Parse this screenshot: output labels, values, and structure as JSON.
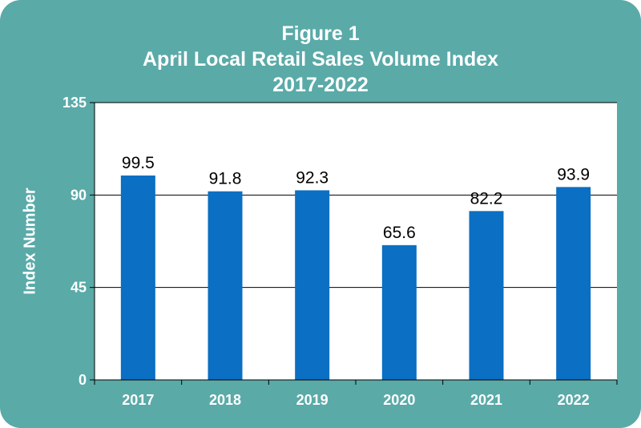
{
  "chart_data": {
    "type": "bar",
    "title": "Figure 1",
    "subtitle": "April Local Retail Sales Volume Index",
    "subtitle2": "2017-2022",
    "ylabel": "Index Number",
    "xlabel": "",
    "categories": [
      "2017",
      "2018",
      "2019",
      "2020",
      "2021",
      "2022"
    ],
    "values": [
      99.5,
      91.8,
      92.3,
      65.6,
      82.2,
      93.9
    ],
    "value_labels": [
      "99.5",
      "91.8",
      "92.3",
      "65.6",
      "82.2",
      "93.9"
    ],
    "ylim": [
      0,
      135
    ],
    "yticks": [
      0,
      45,
      90,
      135
    ],
    "grid": true,
    "legend": "none",
    "colors": {
      "background": "#5aaaa8",
      "plot_area": "#ffffff",
      "bar": "#0b6fc3",
      "text": "#ffffff"
    }
  }
}
